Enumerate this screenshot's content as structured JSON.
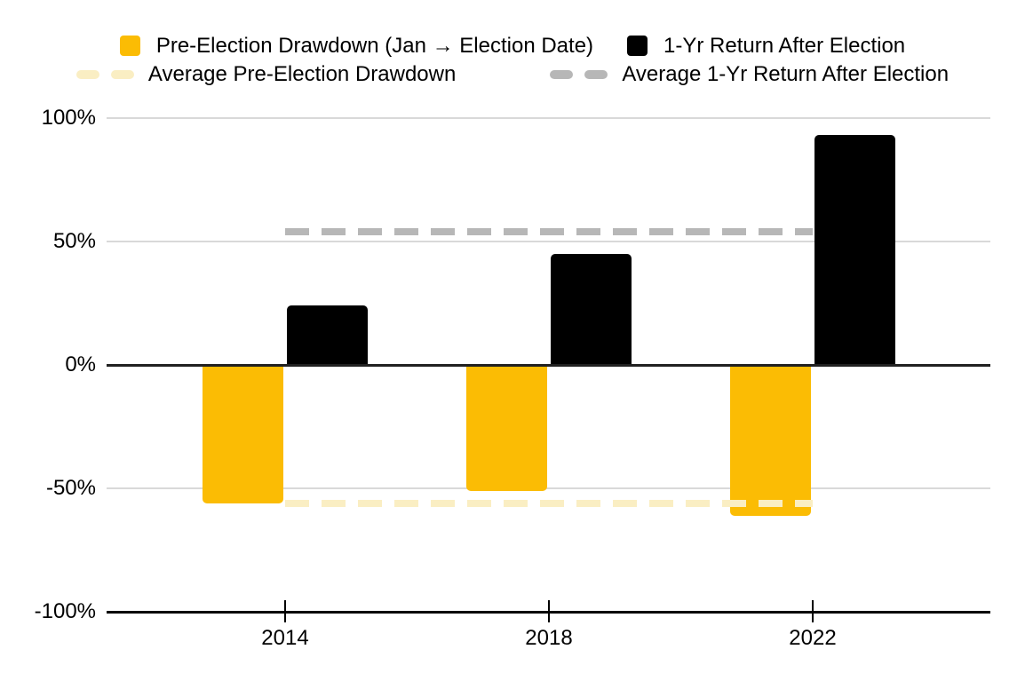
{
  "legend": {
    "rows": [
      {
        "items": [
          {
            "label": "Pre-Election Drawdown (Jan → Election Date)",
            "swatch": "square",
            "color": "#FBBC04"
          },
          {
            "label": "1-Yr Return After Election",
            "swatch": "square",
            "color": "#000000"
          }
        ]
      },
      {
        "items": [
          {
            "label": "Average Pre-Election Drawdown",
            "swatch": "dashes",
            "color": "#FAEEC3"
          },
          {
            "label": "Average 1-Yr Return After Election",
            "swatch": "dashes",
            "color": "#B7B7B7"
          }
        ]
      }
    ]
  },
  "chart_data": {
    "type": "bar",
    "categories": [
      "2014",
      "2018",
      "2022"
    ],
    "series": [
      {
        "name": "Pre-Election Drawdown (Jan → Election Date)",
        "color": "#FBBC04",
        "values": [
          -56,
          -51,
          -61
        ]
      },
      {
        "name": "1-Yr Return After Election",
        "color": "#000000",
        "values": [
          24,
          45,
          93
        ]
      }
    ],
    "average_lines": [
      {
        "name": "Average 1-Yr Return After Election",
        "value": 54,
        "color": "#B7B7B7",
        "style": "dashed",
        "layer": "below-bars"
      },
      {
        "name": "Average Pre-Election Drawdown",
        "value": -56,
        "color": "#FAEEC3",
        "style": "dashed",
        "layer": "above-bars"
      }
    ],
    "ylim": [
      -100,
      100
    ],
    "yticks": [
      {
        "label": "100%",
        "value": 100
      },
      {
        "label": "50%",
        "value": 50
      },
      {
        "label": "0%",
        "value": 0
      },
      {
        "label": "-50%",
        "value": -50
      },
      {
        "label": "-100%",
        "value": -100
      }
    ],
    "grid": true,
    "legend_position": "top",
    "title": "",
    "xlabel": "",
    "ylabel": ""
  },
  "colors": {
    "bar_drawdown": "#FBBC04",
    "bar_return": "#000000",
    "avg_drawdown_line": "#FAEEC3",
    "avg_return_line": "#B7B7B7",
    "gridline": "#D9D9D9",
    "zero_line": "#212121",
    "axis_baseline": "#000000",
    "text": "#000000",
    "background": "#FFFFFF"
  }
}
